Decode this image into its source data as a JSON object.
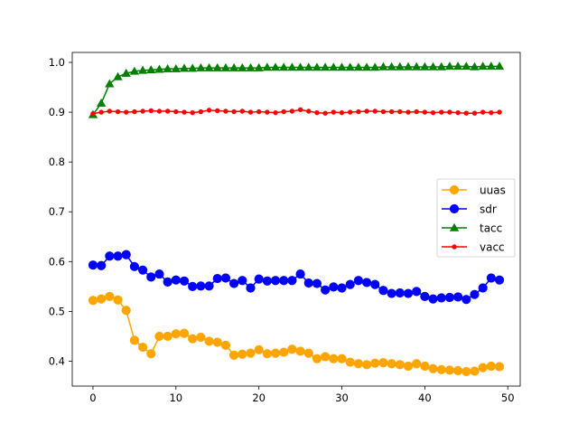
{
  "chart_data": {
    "type": "line",
    "title": "",
    "xlabel": "",
    "ylabel": "",
    "xlim": [
      -2.5,
      51.5
    ],
    "ylim": [
      0.35,
      1.02
    ],
    "xticks": [
      0,
      10,
      20,
      30,
      40,
      50
    ],
    "yticks": [
      0.4,
      0.5,
      0.6,
      0.7,
      0.8,
      0.9,
      1.0
    ],
    "x": [
      0,
      1,
      2,
      3,
      4,
      5,
      6,
      7,
      8,
      9,
      10,
      11,
      12,
      13,
      14,
      15,
      16,
      17,
      18,
      19,
      20,
      21,
      22,
      23,
      24,
      25,
      26,
      27,
      28,
      29,
      30,
      31,
      32,
      33,
      34,
      35,
      36,
      37,
      38,
      39,
      40,
      41,
      42,
      43,
      44,
      45,
      46,
      47,
      48,
      49
    ],
    "grid": false,
    "legend_position": "center-right",
    "series": [
      {
        "name": "uuas",
        "color": "#ffa500",
        "marker": "circle",
        "values": [
          0.522,
          0.525,
          0.53,
          0.523,
          0.502,
          0.442,
          0.428,
          0.415,
          0.45,
          0.45,
          0.455,
          0.456,
          0.445,
          0.448,
          0.44,
          0.438,
          0.432,
          0.412,
          0.414,
          0.416,
          0.423,
          0.415,
          0.416,
          0.418,
          0.424,
          0.42,
          0.416,
          0.405,
          0.409,
          0.405,
          0.405,
          0.398,
          0.395,
          0.393,
          0.396,
          0.397,
          0.395,
          0.393,
          0.39,
          0.395,
          0.39,
          0.385,
          0.383,
          0.382,
          0.381,
          0.379,
          0.38,
          0.387,
          0.39,
          0.389
        ]
      },
      {
        "name": "sdr",
        "color": "#0000ff",
        "marker": "circle",
        "values": [
          0.593,
          0.592,
          0.611,
          0.611,
          0.614,
          0.59,
          0.583,
          0.569,
          0.575,
          0.559,
          0.563,
          0.561,
          0.55,
          0.551,
          0.551,
          0.566,
          0.567,
          0.556,
          0.562,
          0.547,
          0.565,
          0.561,
          0.562,
          0.562,
          0.562,
          0.575,
          0.557,
          0.556,
          0.543,
          0.549,
          0.547,
          0.554,
          0.562,
          0.558,
          0.554,
          0.542,
          0.536,
          0.537,
          0.536,
          0.54,
          0.53,
          0.525,
          0.527,
          0.528,
          0.529,
          0.524,
          0.534,
          0.547,
          0.567,
          0.563
        ]
      },
      {
        "name": "tacc",
        "color": "#008000",
        "marker": "triangle",
        "values": [
          0.895,
          0.918,
          0.957,
          0.971,
          0.978,
          0.982,
          0.984,
          0.985,
          0.986,
          0.987,
          0.987,
          0.988,
          0.988,
          0.989,
          0.989,
          0.989,
          0.989,
          0.989,
          0.989,
          0.989,
          0.989,
          0.99,
          0.99,
          0.99,
          0.99,
          0.99,
          0.99,
          0.99,
          0.99,
          0.99,
          0.99,
          0.99,
          0.99,
          0.99,
          0.99,
          0.991,
          0.991,
          0.991,
          0.991,
          0.991,
          0.991,
          0.991,
          0.991,
          0.992,
          0.992,
          0.992,
          0.991,
          0.992,
          0.992,
          0.992
        ]
      },
      {
        "name": "vacc",
        "color": "#ff0000",
        "marker": "small-circle",
        "values": [
          0.897,
          0.9,
          0.902,
          0.901,
          0.9,
          0.901,
          0.902,
          0.903,
          0.902,
          0.902,
          0.901,
          0.9,
          0.899,
          0.901,
          0.904,
          0.903,
          0.902,
          0.901,
          0.902,
          0.9,
          0.901,
          0.9,
          0.899,
          0.901,
          0.902,
          0.905,
          0.902,
          0.899,
          0.898,
          0.9,
          0.899,
          0.9,
          0.901,
          0.902,
          0.902,
          0.901,
          0.901,
          0.901,
          0.9,
          0.901,
          0.9,
          0.899,
          0.9,
          0.9,
          0.899,
          0.898,
          0.898,
          0.9,
          0.899,
          0.9
        ]
      }
    ]
  }
}
